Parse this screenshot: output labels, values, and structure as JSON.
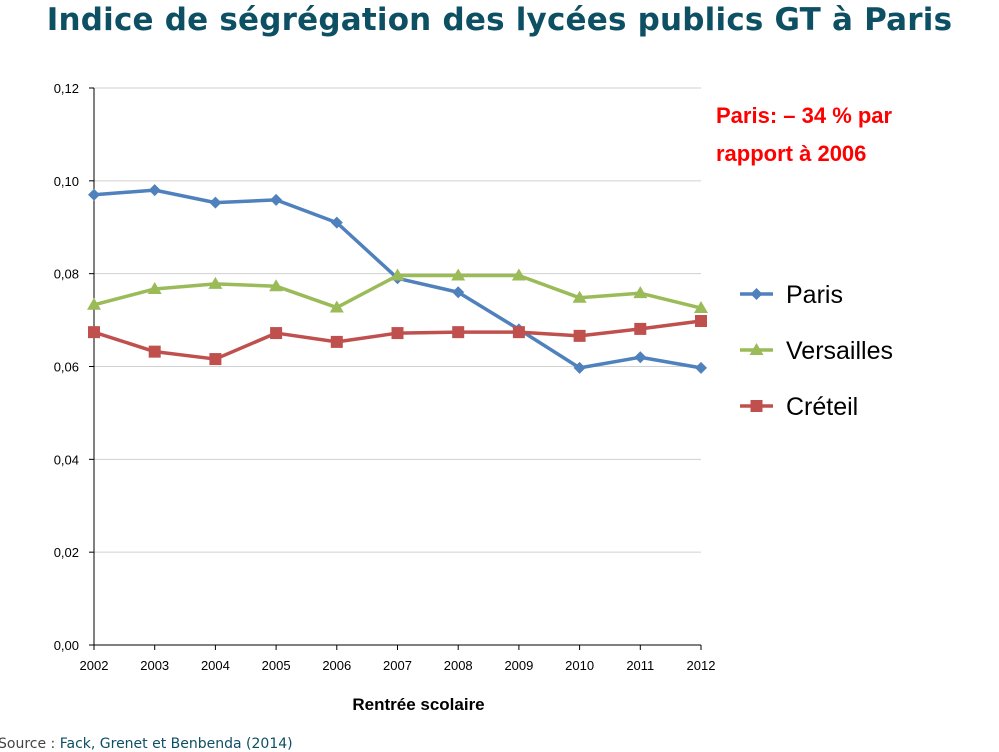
{
  "page": {
    "title": "Indice de ségrégation des lycées publics GT à Paris",
    "source_prefix": "Source :",
    "source_ref": "Fack, Grenet et Benbenda (2014)"
  },
  "chart_data": {
    "type": "line",
    "title": "Indice de ségrégation des lycées publics GT à Paris",
    "xlabel": "Rentrée scolaire",
    "ylabel": "",
    "x": [
      "2002",
      "2003",
      "2004",
      "2005",
      "2006",
      "2007",
      "2008",
      "2009",
      "2010",
      "2011",
      "2012"
    ],
    "ylim": [
      0,
      0.12
    ],
    "yticks": [
      0.0,
      0.02,
      0.04,
      0.06,
      0.08,
      0.1,
      0.12
    ],
    "ytick_labels": [
      "0,00",
      "0,02",
      "0,04",
      "0,06",
      "0,08",
      "0,10",
      "0,12"
    ],
    "grid": "horizontal",
    "legend_position": "right",
    "series": [
      {
        "name": "Paris",
        "color": "#4f81bd",
        "marker": "diamond",
        "values": [
          0.097,
          0.098,
          0.0953,
          0.0959,
          0.091,
          0.079,
          0.076,
          0.068,
          0.0597,
          0.062,
          0.0597
        ]
      },
      {
        "name": "Versailles",
        "color": "#9bbb59",
        "marker": "triangle",
        "values": [
          0.0733,
          0.0767,
          0.0778,
          0.0773,
          0.0727,
          0.0796,
          0.0796,
          0.0796,
          0.0748,
          0.0758,
          0.0726
        ]
      },
      {
        "name": "Créteil",
        "color": "#c0504d",
        "marker": "square",
        "values": [
          0.0674,
          0.0632,
          0.0616,
          0.0672,
          0.0653,
          0.0672,
          0.0674,
          0.0674,
          0.0666,
          0.0681,
          0.0698
        ]
      }
    ],
    "annotation": {
      "lines": [
        "Paris: – 34 % par",
        "rapport à 2006"
      ],
      "color": "#ff0000"
    }
  }
}
